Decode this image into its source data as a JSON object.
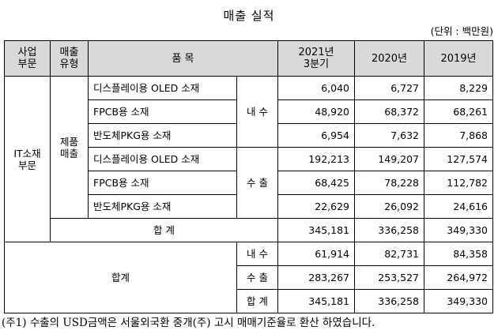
{
  "title": "매출 실적",
  "unit": "(단위 : 백만원)",
  "header": {
    "segment": [
      "사업",
      "부문"
    ],
    "sales_type": [
      "매출",
      "유형"
    ],
    "item": "품 목",
    "col_2021": [
      "2021년",
      "3분기"
    ],
    "col_2020": "2020년",
    "col_2019": "2019년"
  },
  "segment_label": [
    "IT소재",
    "부문"
  ],
  "product_sales_label": [
    "제품",
    "매출"
  ],
  "rows": [
    {
      "item": "디스플레이용 OLED 소재",
      "v2021": "6,040",
      "v2020": "6,727",
      "v2019": "8,229"
    },
    {
      "item": "FPCB용 소재",
      "v2021": "48,920",
      "v2020": "68,372",
      "v2019": "68,261"
    },
    {
      "item": "반도체PKG용 소재",
      "v2021": "6,954",
      "v2020": "7,632",
      "v2019": "7,868"
    },
    {
      "item": "디스플레이용 OLED 소재",
      "v2021": "192,213",
      "v2020": "149,207",
      "v2019": "127,574"
    },
    {
      "item": "FPCB용 소재",
      "v2021": "68,425",
      "v2020": "78,228",
      "v2019": "112,782"
    },
    {
      "item": "반도체PKG용 소재",
      "v2021": "22,629",
      "v2020": "26,092",
      "v2019": "24,616"
    }
  ],
  "domestic_label": "내 수",
  "export_label": "수 출",
  "subtotal": {
    "label": "합 계",
    "v2021": "345,181",
    "v2020": "336,258",
    "v2019": "349,330"
  },
  "grand_total_label": "합계",
  "grand_rows": [
    {
      "label": "내 수",
      "v2021": "61,914",
      "v2020": "82,731",
      "v2019": "84,358"
    },
    {
      "label": "수 출",
      "v2021": "283,267",
      "v2020": "253,527",
      "v2019": "264,972"
    },
    {
      "label": "합 계",
      "v2021": "345,181",
      "v2020": "336,258",
      "v2019": "349,330"
    }
  ],
  "footnote": "(주1) 수출의 USD금액은 서울외국환 중개(주) 고시 매매기준율로 환산 하였습니다."
}
